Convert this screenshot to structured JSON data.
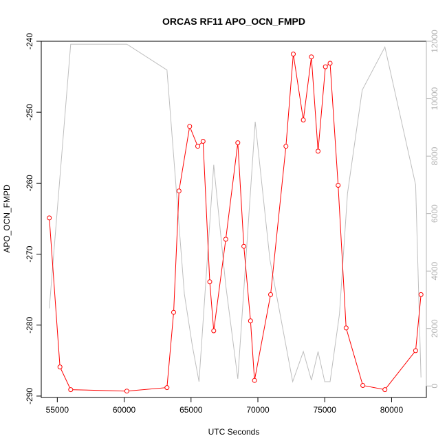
{
  "chart_data": {
    "type": "line",
    "title": "ORCAS RF11 APO_OCN_FMPD",
    "xlabel": "UTC Seconds",
    "ylabel": "APO_OCN_FMPD",
    "xlim": [
      53800,
      82600
    ],
    "ylim": [
      -290.2,
      -240
    ],
    "y2lim": [
      -400,
      12000
    ],
    "x_ticks": [
      55000,
      60000,
      65000,
      70000,
      75000,
      80000
    ],
    "y_ticks": [
      -290,
      -280,
      -270,
      -260,
      -250,
      -240
    ],
    "y2_ticks": [
      0,
      2000,
      4000,
      6000,
      8000,
      10000,
      12000
    ],
    "grid": false,
    "colors": {
      "primary": "#ff0000",
      "secondary": "#bebebe",
      "axis": "#000000",
      "secondary_axis": "#b3b3b3"
    },
    "series": [
      {
        "marker": "open-circle",
        "axis": "left",
        "x": [
          54400,
          55200,
          56000,
          60200,
          63200,
          63700,
          64100,
          64900,
          65500,
          65900,
          66400,
          66700,
          67600,
          68500,
          68950,
          69450,
          69750,
          70950,
          72100,
          72650,
          73400,
          74000,
          74500,
          75050,
          75400,
          76000,
          76600,
          77850,
          79500,
          81800,
          82200
        ],
        "y": [
          -264.9,
          -285.9,
          -289.1,
          -289.3,
          -288.8,
          -278.2,
          -261.1,
          -252.0,
          -254.8,
          -254.1,
          -273.9,
          -280.8,
          -267.9,
          -254.3,
          -268.9,
          -279.4,
          -287.8,
          -275.7,
          -254.8,
          -241.8,
          -251.1,
          -242.2,
          -255.5,
          -243.6,
          -243.1,
          -260.3,
          -280.4,
          -288.5,
          -289.1,
          -283.6,
          -275.7
        ]
      },
      {
        "axis": "right",
        "x": [
          54400,
          56000,
          60200,
          63200,
          64500,
          65100,
          65600,
          66700,
          67600,
          68500,
          69800,
          70900,
          72600,
          73400,
          74000,
          74500,
          75000,
          75400,
          76100,
          76700,
          77800,
          79500,
          81800,
          82200
        ],
        "y": [
          2700,
          11900,
          11900,
          11000,
          3200,
          1400,
          150,
          7700,
          3500,
          250,
          9200,
          4400,
          150,
          1200,
          200,
          1200,
          150,
          150,
          2500,
          6700,
          10300,
          11800,
          7000,
          300
        ]
      }
    ]
  }
}
